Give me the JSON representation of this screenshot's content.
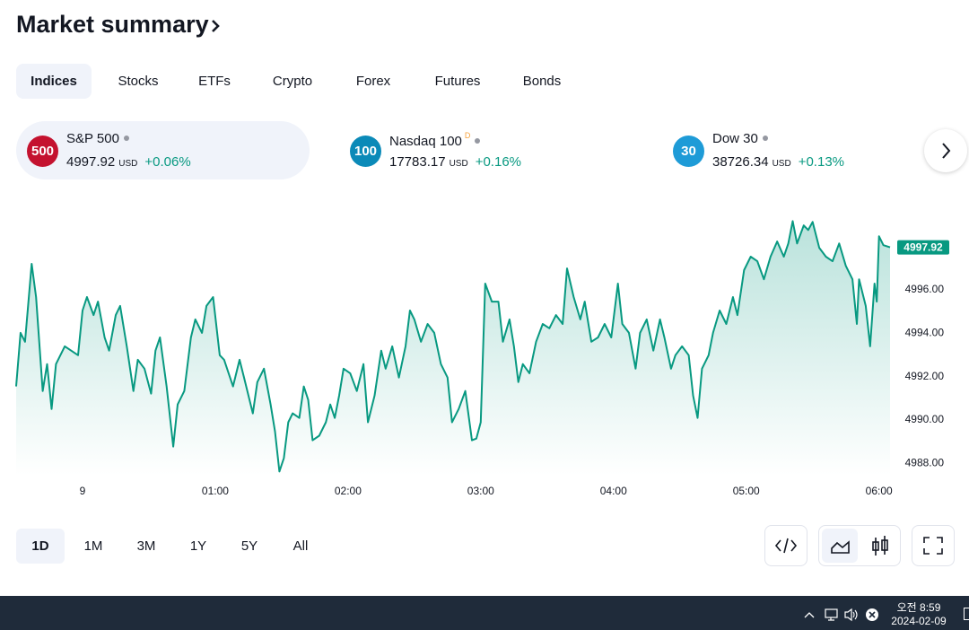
{
  "header": {
    "title": "Market summary"
  },
  "tabs": {
    "items": [
      "Indices",
      "Stocks",
      "ETFs",
      "Crypto",
      "Forex",
      "Futures",
      "Bonds"
    ],
    "active": "Indices"
  },
  "tickers": [
    {
      "badge": "500",
      "badge_color": "#c4122f",
      "name": "S&P 500",
      "price": "4997.92",
      "currency": "USD",
      "change": "+0.06%"
    },
    {
      "badge": "100",
      "badge_color": "#0b8ab8",
      "name": "Nasdaq 100",
      "flag": "D",
      "price": "17783.17",
      "currency": "USD",
      "change": "+0.16%"
    },
    {
      "badge": "30",
      "badge_color": "#1e9bd7",
      "name": "Dow 30",
      "price": "38726.34",
      "currency": "USD",
      "change": "+0.13%"
    }
  ],
  "chart_data": {
    "type": "line",
    "color": "#089981",
    "x": [
      -30,
      -28,
      -26,
      -23,
      -21,
      -18,
      -16,
      -14,
      -12,
      -8,
      -2,
      0,
      2,
      5,
      7,
      10,
      12,
      15,
      17,
      20,
      23,
      25,
      28,
      31,
      33,
      35,
      38,
      41,
      43,
      46,
      49,
      51,
      54,
      56,
      59,
      62,
      64,
      68,
      71,
      73,
      77,
      79,
      82,
      85,
      87,
      89,
      91,
      93,
      95,
      98,
      100,
      102,
      104,
      107,
      110,
      112,
      114,
      116,
      118,
      121,
      124,
      127,
      129,
      132,
      135,
      137,
      140,
      143,
      146,
      148,
      150,
      153,
      156,
      159,
      162,
      165,
      167,
      170,
      173,
      176,
      178,
      180,
      182,
      185,
      188,
      190,
      193,
      195,
      197,
      199,
      202,
      205,
      208,
      211,
      214,
      217,
      219,
      222,
      225,
      227,
      230,
      233,
      236,
      239,
      242,
      244,
      247,
      250,
      252,
      255,
      258,
      261,
      263,
      266,
      268,
      271,
      274,
      276,
      278,
      280,
      283,
      285,
      288,
      291,
      294,
      296,
      299,
      302,
      305,
      308,
      311,
      314,
      317,
      319,
      321,
      323,
      326,
      328,
      330,
      333,
      336,
      339,
      342,
      345,
      348,
      350,
      351,
      354,
      356,
      358,
      359,
      360,
      362,
      365
    ],
    "values": [
      4991.51,
      4993.98,
      4993.57,
      4997.16,
      4995.63,
      4991.3,
      4992.54,
      4990.47,
      4992.54,
      4993.36,
      4992.95,
      4995.01,
      4995.63,
      4994.8,
      4995.42,
      4993.77,
      4993.16,
      4994.8,
      4995.22,
      4993.36,
      4991.3,
      4992.74,
      4992.33,
      4991.18,
      4993.16,
      4993.77,
      4991.51,
      4988.74,
      4990.68,
      4991.3,
      4993.77,
      4994.6,
      4993.98,
      4995.22,
      4995.63,
      4992.95,
      4992.74,
      4991.51,
      4992.74,
      4991.92,
      4990.27,
      4991.71,
      4992.33,
      4990.68,
      4989.44,
      4987.59,
      4988.21,
      4989.86,
      4990.27,
      4990.06,
      4991.51,
      4990.89,
      4989.03,
      4989.24,
      4989.86,
      4990.68,
      4990.06,
      4991.09,
      4992.33,
      4992.12,
      4991.3,
      4992.54,
      4989.86,
      4991.09,
      4993.16,
      4992.33,
      4993.36,
      4991.92,
      4993.36,
      4995.01,
      4994.6,
      4993.57,
      4994.39,
      4993.98,
      4992.54,
      4991.92,
      4989.86,
      4990.47,
      4991.3,
      4989.03,
      4989.11,
      4989.86,
      4996.25,
      4995.42,
      4995.42,
      4993.57,
      4994.6,
      4993.36,
      4991.71,
      4992.54,
      4992.12,
      4993.57,
      4994.39,
      4994.19,
      4994.8,
      4994.39,
      4996.95,
      4995.63,
      4994.6,
      4995.42,
      4993.57,
      4993.77,
      4994.39,
      4993.77,
      4996.25,
      4994.39,
      4993.98,
      4992.33,
      4993.98,
      4994.6,
      4993.16,
      4994.6,
      4993.77,
      4992.33,
      4992.95,
      4993.36,
      4992.95,
      4991.09,
      4990.06,
      4992.33,
      4992.95,
      4993.98,
      4995.01,
      4994.39,
      4995.63,
      4994.8,
      4996.87,
      4997.49,
      4997.28,
      4996.45,
      4997.49,
      4998.19,
      4997.49,
      4998.1,
      4999.13,
      4998.1,
      4998.93,
      4998.72,
      4999.09,
      4997.9,
      4997.49,
      4997.28,
      4998.1,
      4997.07,
      4996.45,
      4994.39,
      4996.45,
      4995.22,
      4993.36,
      4996.25,
      4995.42,
      4998.43,
      4998.02,
      4997.92
    ],
    "xlim": [
      -30,
      365
    ],
    "ylim": [
      4987.4,
      4999.6
    ],
    "xticks": [
      {
        "value": 0,
        "label": "9"
      },
      {
        "value": 60,
        "label": "01:00"
      },
      {
        "value": 120,
        "label": "02:00"
      },
      {
        "value": 180,
        "label": "03:00"
      },
      {
        "value": 240,
        "label": "04:00"
      },
      {
        "value": 300,
        "label": "05:00"
      },
      {
        "value": 360,
        "label": "06:00"
      }
    ],
    "yticks": [
      {
        "value": 4988,
        "label": "4988.00"
      },
      {
        "value": 4990,
        "label": "4990.00"
      },
      {
        "value": 4992,
        "label": "4992.00"
      },
      {
        "value": 4994,
        "label": "4994.00"
      },
      {
        "value": 4996,
        "label": "4996.00"
      }
    ],
    "last_value": {
      "value": 4997.92,
      "label": "4997.92"
    }
  },
  "ranges": {
    "items": [
      "1D",
      "1M",
      "3M",
      "1Y",
      "5Y",
      "All"
    ],
    "active": "1D"
  },
  "taskbar": {
    "time": "오전 8:59",
    "date": "2024-02-09"
  }
}
